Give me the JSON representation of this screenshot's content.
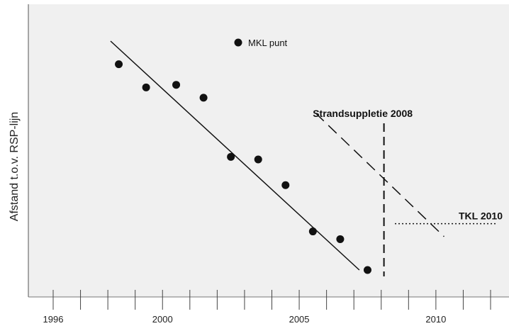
{
  "chart_data": {
    "type": "scatter",
    "title": "",
    "xlabel": "",
    "ylabel": "Afstand t.o.v. RSP-lijn",
    "xlim": [
      1995.3,
      2012.2
    ],
    "ylim": [
      0,
      100
    ],
    "x_ticks": [
      1996,
      1997,
      1998,
      1999,
      2000,
      2001,
      2002,
      2003,
      2004,
      2005,
      2006,
      2007,
      2008,
      2009,
      2010,
      2011,
      2012
    ],
    "x_tick_labels": [
      {
        "x": 1996,
        "label": "1996"
      },
      {
        "x": 2000,
        "label": "2000"
      },
      {
        "x": 2005,
        "label": "2005"
      },
      {
        "x": 2010,
        "label": "2010"
      }
    ],
    "grid": false,
    "legend": {
      "position": "top",
      "entries": [
        {
          "label": "MKL punt",
          "marker": "filled-circle"
        }
      ]
    },
    "series": [
      {
        "name": "MKL punt",
        "points": [
          {
            "x": 1998.4,
            "y": 86
          },
          {
            "x": 1999.4,
            "y": 77
          },
          {
            "x": 2000.5,
            "y": 78
          },
          {
            "x": 2001.5,
            "y": 73
          },
          {
            "x": 2002.5,
            "y": 50
          },
          {
            "x": 2003.5,
            "y": 49
          },
          {
            "x": 2004.5,
            "y": 39
          },
          {
            "x": 2005.5,
            "y": 21
          },
          {
            "x": 2006.5,
            "y": 18
          },
          {
            "x": 2007.5,
            "y": 6
          }
        ]
      }
    ],
    "trend_lines": [
      {
        "style": "solid",
        "from": {
          "x": 1998.1,
          "y": 95
        },
        "to": {
          "x": 2007.2,
          "y": 6
        }
      },
      {
        "style": "dashed",
        "from": {
          "x": 2005.6,
          "y": 67
        },
        "to": {
          "x": 2010.3,
          "y": 19
        }
      }
    ],
    "annotations": [
      {
        "text": "Strandsuppletie 2008",
        "type": "vertical-dashed-line",
        "x": 2008.1
      },
      {
        "text": "TKL 2010",
        "type": "horizontal-dotted-line",
        "y": 24,
        "x_from": 2008.5,
        "x_to": 2012.2
      }
    ]
  }
}
